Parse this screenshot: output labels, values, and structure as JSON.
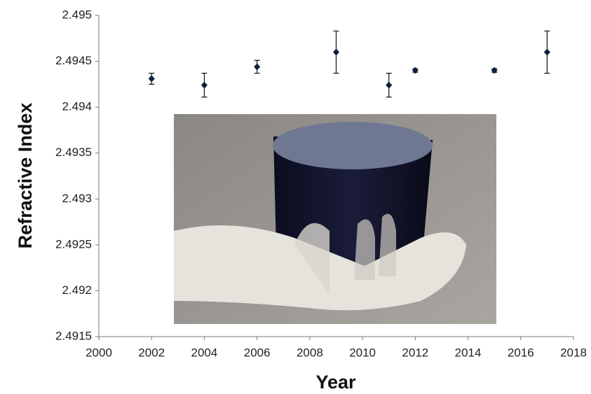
{
  "chart_data": {
    "type": "scatter",
    "x_label": "Year",
    "y_label": "Refractive Index",
    "x": [
      2002,
      2004,
      2006,
      2009,
      2011,
      2012,
      2015,
      2017
    ],
    "values": [
      2.49431,
      2.49424,
      2.49444,
      2.4946,
      2.49424,
      2.4944,
      2.4944,
      2.4946
    ],
    "errors": [
      6e-05,
      0.00013,
      7e-05,
      0.00023,
      0.00013,
      2e-05,
      2e-05,
      0.00023
    ],
    "color": "#0d1f3c",
    "xlim": [
      2000,
      2018
    ],
    "xticks": [
      2000,
      2002,
      2004,
      2006,
      2008,
      2010,
      2012,
      2014,
      2016,
      2018
    ],
    "ylim": [
      2.4915,
      2.495
    ],
    "yticks": [
      2.4915,
      2.492,
      2.4925,
      2.493,
      2.4935,
      2.494,
      2.4945,
      2.495
    ]
  }
}
